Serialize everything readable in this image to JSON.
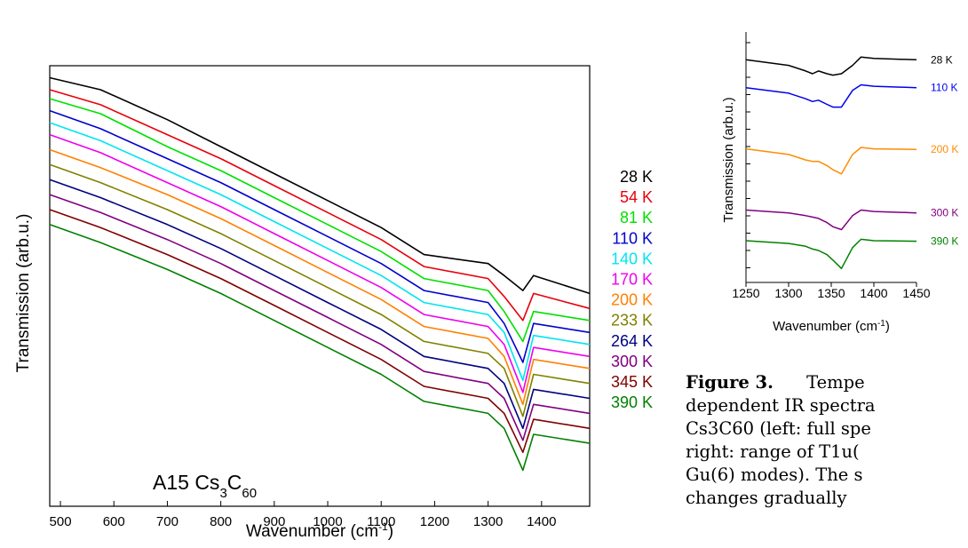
{
  "chart_data": [
    {
      "type": "line",
      "annotation": "A15 Cs3C60",
      "annotation_main": "A15 Cs",
      "annotation_sub1": "3",
      "annotation_mid": "C",
      "annotation_sub2": "60",
      "xlabel_main": "Wavenumber (cm",
      "xlabel_sup": "-1",
      "xlabel_end": ")",
      "ylabel": "Transmission (arb.u.)",
      "xlim": [
        480,
        1490
      ],
      "xticks": [
        500,
        600,
        700,
        800,
        900,
        1000,
        1100,
        1200,
        1300,
        1400
      ],
      "xtick_labels": [
        "500",
        "600",
        "700",
        "800",
        "900",
        "1000",
        "1100",
        "1200",
        "1300",
        "1400"
      ],
      "legend_placement": "right",
      "series": [
        {
          "name": "28 K",
          "color": "#000000",
          "x": [
            480,
            575,
            700,
            800,
            900,
            1000,
            1100,
            1180,
            1300,
            1330,
            1365,
            1385,
            1490
          ],
          "y": [
            0.98,
            0.94,
            0.84,
            0.75,
            0.66,
            0.57,
            0.48,
            0.39,
            0.36,
            0.32,
            0.27,
            0.32,
            0.26
          ]
        },
        {
          "name": "54 K",
          "color": "#e8000b",
          "x": [
            480,
            575,
            700,
            800,
            900,
            1000,
            1100,
            1180,
            1300,
            1330,
            1365,
            1385,
            1490
          ],
          "y": [
            0.94,
            0.89,
            0.79,
            0.71,
            0.62,
            0.53,
            0.44,
            0.35,
            0.31,
            0.25,
            0.17,
            0.26,
            0.21
          ]
        },
        {
          "name": "81 K",
          "color": "#00e000",
          "x": [
            480,
            575,
            700,
            800,
            900,
            1000,
            1100,
            1180,
            1300,
            1330,
            1365,
            1385,
            1490
          ],
          "y": [
            0.91,
            0.86,
            0.75,
            0.67,
            0.58,
            0.49,
            0.4,
            0.31,
            0.27,
            0.2,
            0.1,
            0.2,
            0.17
          ]
        },
        {
          "name": "110 K",
          "color": "#0000cc",
          "x": [
            480,
            575,
            700,
            800,
            900,
            1000,
            1100,
            1180,
            1300,
            1330,
            1365,
            1385,
            1490
          ],
          "y": [
            0.87,
            0.81,
            0.71,
            0.63,
            0.54,
            0.45,
            0.36,
            0.27,
            0.23,
            0.16,
            0.03,
            0.16,
            0.13
          ]
        },
        {
          "name": "140 K",
          "color": "#00e5ee",
          "x": [
            480,
            575,
            700,
            800,
            900,
            1000,
            1100,
            1180,
            1300,
            1330,
            1365,
            1385,
            1490
          ],
          "y": [
            0.83,
            0.77,
            0.67,
            0.59,
            0.5,
            0.41,
            0.32,
            0.23,
            0.19,
            0.13,
            -0.03,
            0.12,
            0.09
          ]
        },
        {
          "name": "170 K",
          "color": "#ee00ee",
          "x": [
            480,
            575,
            700,
            800,
            900,
            1000,
            1100,
            1180,
            1300,
            1330,
            1365,
            1385,
            1490
          ],
          "y": [
            0.79,
            0.73,
            0.63,
            0.55,
            0.46,
            0.37,
            0.28,
            0.19,
            0.15,
            0.09,
            -0.07,
            0.08,
            0.05
          ]
        },
        {
          "name": "200 K",
          "color": "#ff8000",
          "x": [
            480,
            575,
            700,
            800,
            900,
            1000,
            1100,
            1180,
            1300,
            1330,
            1365,
            1385,
            1490
          ],
          "y": [
            0.74,
            0.68,
            0.59,
            0.51,
            0.42,
            0.33,
            0.24,
            0.15,
            0.11,
            0.05,
            -0.11,
            0.04,
            0.01
          ]
        },
        {
          "name": "233 K",
          "color": "#808000",
          "x": [
            480,
            575,
            700,
            800,
            900,
            1000,
            1100,
            1180,
            1300,
            1330,
            1365,
            1385,
            1490
          ],
          "y": [
            0.69,
            0.63,
            0.54,
            0.46,
            0.37,
            0.28,
            0.19,
            0.1,
            0.06,
            0.01,
            -0.15,
            -0.01,
            -0.04
          ]
        },
        {
          "name": "264 K",
          "color": "#000080",
          "x": [
            480,
            575,
            700,
            800,
            900,
            1000,
            1100,
            1180,
            1300,
            1330,
            1365,
            1385,
            1490
          ],
          "y": [
            0.64,
            0.58,
            0.49,
            0.41,
            0.32,
            0.23,
            0.14,
            0.05,
            0.01,
            -0.04,
            -0.19,
            -0.06,
            -0.09
          ]
        },
        {
          "name": "300 K",
          "color": "#800080",
          "x": [
            480,
            575,
            700,
            800,
            900,
            1000,
            1100,
            1180,
            1300,
            1330,
            1365,
            1385,
            1490
          ],
          "y": [
            0.59,
            0.53,
            0.44,
            0.36,
            0.27,
            0.18,
            0.09,
            0.0,
            -0.04,
            -0.09,
            -0.23,
            -0.11,
            -0.14
          ]
        },
        {
          "name": "345 K",
          "color": "#800000",
          "x": [
            480,
            575,
            700,
            800,
            900,
            1000,
            1100,
            1180,
            1300,
            1330,
            1365,
            1385,
            1490
          ],
          "y": [
            0.54,
            0.48,
            0.39,
            0.31,
            0.22,
            0.13,
            0.04,
            -0.05,
            -0.09,
            -0.14,
            -0.27,
            -0.16,
            -0.19
          ]
        },
        {
          "name": "390 K",
          "color": "#008000",
          "x": [
            480,
            575,
            700,
            800,
            900,
            1000,
            1100,
            1180,
            1300,
            1330,
            1365,
            1385,
            1490
          ],
          "y": [
            0.49,
            0.43,
            0.34,
            0.26,
            0.17,
            0.08,
            -0.01,
            -0.1,
            -0.14,
            -0.19,
            -0.33,
            -0.21,
            -0.24
          ]
        }
      ]
    },
    {
      "type": "line",
      "xlabel_main": "Wavenumber (cm",
      "xlabel_sup": "-1",
      "xlabel_end": ")",
      "ylabel": "Transmission (arb.u.)",
      "xlim": [
        1250,
        1450
      ],
      "xticks": [
        1250,
        1300,
        1350,
        1400,
        1450
      ],
      "xtick_labels": [
        "1250",
        "1300",
        "1350",
        "1400",
        "1450"
      ],
      "legend_placement": "right",
      "series": [
        {
          "name": "28 K",
          "color": "#000000",
          "x": [
            1250,
            1300,
            1320,
            1328,
            1335,
            1345,
            1352,
            1362,
            1375,
            1385,
            1400,
            1450
          ],
          "y": [
            0.9,
            0.88,
            0.86,
            0.85,
            0.86,
            0.85,
            0.845,
            0.85,
            0.88,
            0.91,
            0.905,
            0.9
          ]
        },
        {
          "name": "110 K",
          "color": "#0000ee",
          "x": [
            1250,
            1300,
            1320,
            1328,
            1335,
            1345,
            1352,
            1362,
            1375,
            1385,
            1400,
            1450
          ],
          "y": [
            0.8,
            0.78,
            0.76,
            0.75,
            0.755,
            0.74,
            0.73,
            0.73,
            0.79,
            0.81,
            0.805,
            0.8
          ]
        },
        {
          "name": "200 K",
          "color": "#ff8c00",
          "x": [
            1250,
            1300,
            1320,
            1328,
            1335,
            1345,
            1352,
            1362,
            1375,
            1385,
            1400,
            1450
          ],
          "y": [
            0.58,
            0.56,
            0.54,
            0.535,
            0.535,
            0.52,
            0.505,
            0.49,
            0.56,
            0.585,
            0.58,
            0.578
          ]
        },
        {
          "name": "300 K",
          "color": "#800080",
          "x": [
            1250,
            1300,
            1320,
            1328,
            1335,
            1345,
            1352,
            1362,
            1375,
            1385,
            1400,
            1450
          ],
          "y": [
            0.36,
            0.35,
            0.34,
            0.335,
            0.33,
            0.315,
            0.3,
            0.29,
            0.34,
            0.36,
            0.355,
            0.35
          ]
        },
        {
          "name": "390 K",
          "color": "#008000",
          "x": [
            1250,
            1300,
            1320,
            1328,
            1335,
            1345,
            1352,
            1362,
            1375,
            1385,
            1400,
            1450
          ],
          "y": [
            0.25,
            0.24,
            0.23,
            0.22,
            0.215,
            0.2,
            0.18,
            0.15,
            0.225,
            0.255,
            0.25,
            0.248
          ]
        }
      ]
    }
  ],
  "caption": {
    "label": "Figure 3.",
    "line1_rest": "Tempe",
    "line2": "dependent IR spectra",
    "line3": "Cs3C60 (left: full spe",
    "line4": "right: range of T1u(",
    "line5": "Gu(6) modes). The s",
    "line6": "changes gradually"
  }
}
